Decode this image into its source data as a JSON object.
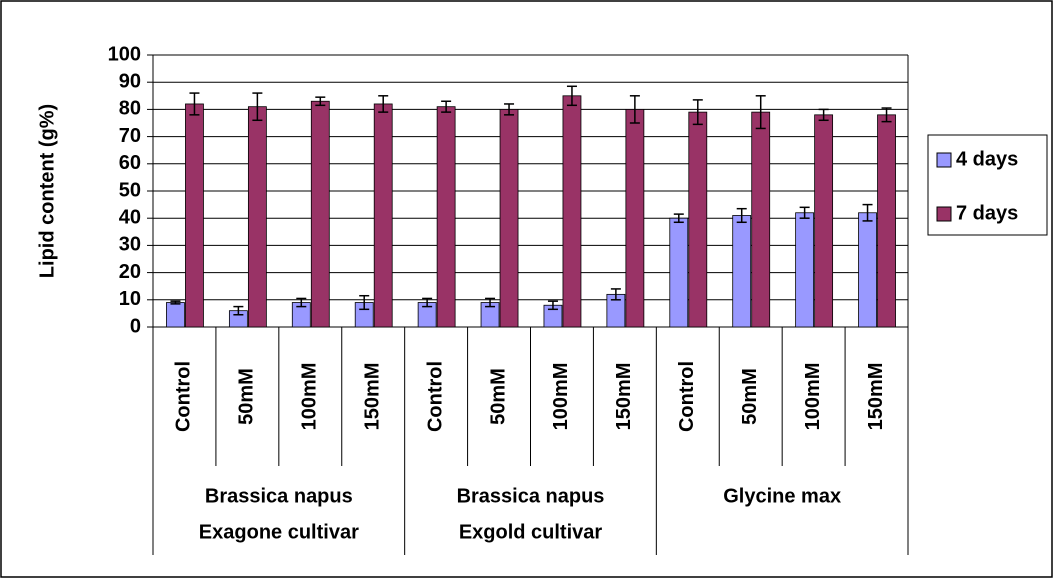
{
  "chart_data": {
    "type": "bar",
    "ylabel": "Lipid content (g%)",
    "categories": [
      "Control",
      "50mM",
      "100mM",
      "150mM",
      "Control",
      "50mM",
      "100mM",
      "150mM",
      "Control",
      "50mM",
      "100mM",
      "150mM"
    ],
    "groups": [
      [
        "Brassica napus",
        "Exagone cultivar"
      ],
      [
        "Brassica napus",
        "Exgold cultivar"
      ],
      [
        "Glycine max"
      ]
    ],
    "series": [
      {
        "name": "4 days",
        "color": "#9999ff",
        "values": [
          9,
          6,
          9,
          9,
          9,
          9,
          8,
          12,
          40,
          41,
          42,
          42
        ],
        "errors": [
          0.5,
          1.5,
          1.5,
          2.5,
          1.5,
          1.5,
          1.5,
          2,
          1.5,
          2.5,
          2,
          3
        ]
      },
      {
        "name": "7 days",
        "color": "#993366",
        "values": [
          82,
          81,
          83,
          82,
          81,
          80,
          85,
          80,
          79,
          79,
          78,
          78
        ],
        "errors": [
          4,
          5,
          1.5,
          3,
          2,
          2,
          3.5,
          5,
          4.5,
          6,
          2,
          2.5
        ]
      }
    ],
    "ylim": [
      0,
      100
    ],
    "yticks": [
      0,
      10,
      20,
      30,
      40,
      50,
      60,
      70,
      80,
      90,
      100
    ],
    "grid": true,
    "legend": "right"
  }
}
